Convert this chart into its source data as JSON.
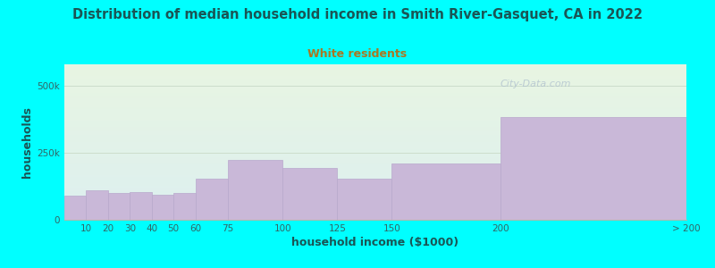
{
  "title": "Distribution of median household income in Smith River-Gasquet, CA in 2022",
  "subtitle": "White residents",
  "xlabel": "household income ($1000)",
  "ylabel": "households",
  "background_color": "#00FFFF",
  "plot_bg_gradient_top": "#e8f5e2",
  "plot_bg_gradient_bottom": "#ddf0f0",
  "bar_color": "#c9b8d8",
  "bar_edge_color": "#b8a8cc",
  "title_color": "#1a5555",
  "subtitle_color": "#aa7722",
  "axis_label_color": "#1a5555",
  "tick_color": "#336666",
  "gridline_color": "#ccddcc",
  "watermark_color": "#aabbcc",
  "categories": [
    "10",
    "20",
    "30",
    "40",
    "50",
    "60",
    "75",
    "100",
    "125",
    "150",
    "200",
    "> 200"
  ],
  "values": [
    90000,
    110000,
    100000,
    105000,
    95000,
    100000,
    155000,
    225000,
    195000,
    155000,
    210000,
    385000
  ],
  "ylim": [
    0,
    580000
  ],
  "ytick_vals": [
    0,
    250000,
    500000
  ],
  "ytick_labels": [
    "0",
    "250k",
    "500k"
  ],
  "bar_lefts": [
    0,
    10,
    20,
    30,
    40,
    50,
    60,
    75,
    100,
    125,
    150,
    200
  ],
  "bar_widths_data": [
    10,
    10,
    10,
    10,
    10,
    10,
    15,
    25,
    25,
    25,
    50,
    85
  ],
  "xtick_positions": [
    0,
    10,
    20,
    30,
    40,
    50,
    60,
    75,
    100,
    125,
    150,
    200,
    285
  ],
  "xtick_labels": [
    "",
    "10",
    "20",
    "30",
    "40",
    "50",
    "60",
    "75",
    "100",
    "125",
    "150",
    "200",
    "> 200"
  ],
  "watermark": "City-Data.com"
}
